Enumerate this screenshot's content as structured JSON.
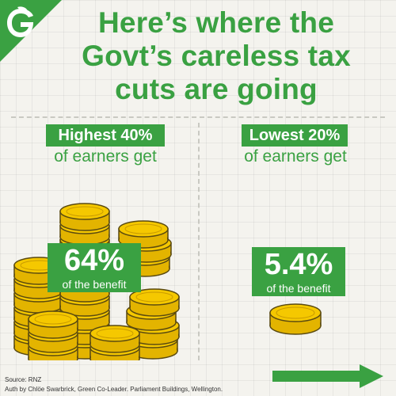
{
  "brand": {
    "logo_letter": "G",
    "primary_color": "#3aa142",
    "coin_color": "#f2c200",
    "coin_outline": "#5a4a10"
  },
  "headline": {
    "line1": "Here’s where the",
    "line2": "Govt’s careless tax",
    "line3": "cuts are going"
  },
  "left_panel": {
    "label": "Highest 40%",
    "sub": "of earners get",
    "value": "64%",
    "value_sub": "of the benefit"
  },
  "right_panel": {
    "label": "Lowest 20%",
    "sub": "of earners get",
    "value": "5.4%",
    "value_sub": "of the benefit"
  },
  "footer": {
    "source": "Source: RNZ",
    "authorisation": "Auth by Chlöe Swarbrick, Green Co-Leader. Parliament Buildings, Wellington."
  },
  "icons": {
    "logo": "leaf-g-logo",
    "coins": "coin-stack-icon",
    "next": "arrow-right-icon"
  }
}
